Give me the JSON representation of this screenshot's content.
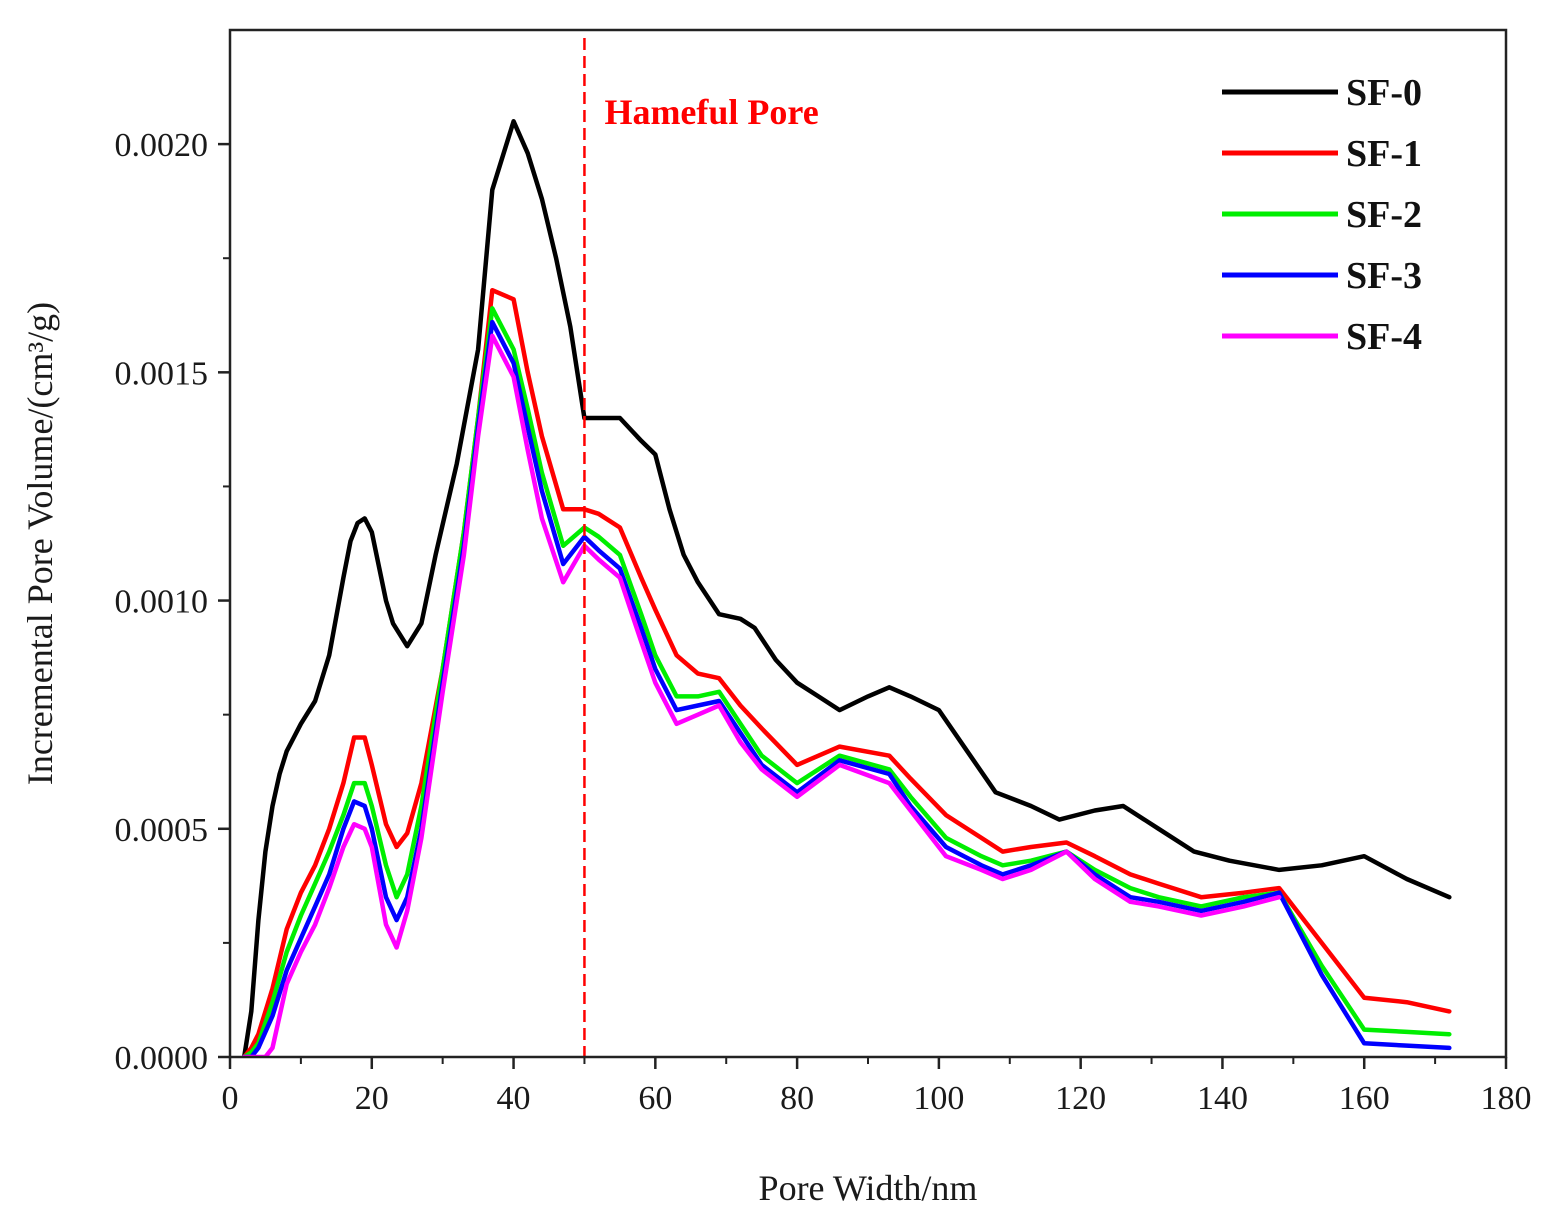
{
  "chart_data": {
    "type": "line",
    "title": "",
    "xlabel": "Pore Width/nm",
    "ylabel": "Incremental Pore Volume/(cm³/g)",
    "xlim": [
      0,
      180
    ],
    "ylim": [
      0,
      0.00225
    ],
    "xticks": [
      0,
      20,
      40,
      60,
      80,
      100,
      120,
      140,
      160,
      180
    ],
    "xtick_labels": [
      "0",
      "20",
      "40",
      "60",
      "80",
      "100",
      "120",
      "140",
      "160",
      "180"
    ],
    "yticks": [
      0,
      0.0005,
      0.001,
      0.0015,
      0.002
    ],
    "ytick_labels": [
      "0.0000",
      "0.0005",
      "0.0010",
      "0.0015",
      "0.0020"
    ],
    "grid": false,
    "legend_position": "top-right",
    "annotation": {
      "text": "Hameful Pore",
      "x": 50,
      "color": "#ff0000"
    },
    "series": [
      {
        "name": "SF-0",
        "color": "#000000",
        "x": [
          2,
          3,
          4,
          5,
          6,
          7,
          8,
          9,
          10,
          12,
          14,
          16,
          17,
          18,
          19,
          20,
          22,
          23,
          25,
          27,
          29,
          32,
          35,
          37,
          38,
          40,
          42,
          44,
          46,
          48,
          50,
          52,
          55,
          58,
          60,
          62,
          64,
          66,
          69,
          72,
          74,
          77,
          80,
          83,
          86,
          90,
          93,
          96,
          100,
          104,
          108,
          113,
          117,
          122,
          126,
          131,
          136,
          141,
          148,
          154,
          160,
          166,
          172
        ],
        "values": [
          0,
          0.0001,
          0.0003,
          0.00045,
          0.00055,
          0.00062,
          0.00067,
          0.0007,
          0.00073,
          0.00078,
          0.00088,
          0.00105,
          0.00113,
          0.00117,
          0.00118,
          0.00115,
          0.001,
          0.00095,
          0.0009,
          0.00095,
          0.0011,
          0.0013,
          0.00155,
          0.0019,
          0.00195,
          0.00205,
          0.00198,
          0.00188,
          0.00175,
          0.0016,
          0.0014,
          0.0014,
          0.0014,
          0.00135,
          0.00132,
          0.0012,
          0.0011,
          0.00104,
          0.00097,
          0.00096,
          0.00094,
          0.00087,
          0.00082,
          0.00079,
          0.00076,
          0.00079,
          0.00081,
          0.00079,
          0.00076,
          0.00067,
          0.00058,
          0.00055,
          0.00052,
          0.00054,
          0.00055,
          0.0005,
          0.00045,
          0.00043,
          0.00041,
          0.00042,
          0.00044,
          0.00039,
          0.00035
        ]
      },
      {
        "name": "SF-1",
        "color": "#ff0000",
        "x": [
          2,
          3,
          4,
          6,
          8,
          10,
          12,
          14,
          16,
          17.5,
          19,
          20,
          22,
          23.5,
          25,
          27,
          30,
          33,
          35,
          37,
          40,
          42,
          44,
          47,
          50,
          52,
          55,
          58,
          60,
          63,
          66,
          69,
          72,
          75,
          80,
          86,
          93,
          96,
          101,
          106,
          109,
          113,
          118,
          122,
          127,
          131,
          137,
          143,
          148,
          154,
          160,
          166,
          172
        ],
        "values": [
          0,
          2e-05,
          5e-05,
          0.00015,
          0.00028,
          0.00036,
          0.00042,
          0.0005,
          0.0006,
          0.0007,
          0.0007,
          0.00064,
          0.00051,
          0.00046,
          0.00049,
          0.0006,
          0.00085,
          0.00115,
          0.0014,
          0.00168,
          0.00166,
          0.0015,
          0.00136,
          0.0012,
          0.0012,
          0.00119,
          0.00116,
          0.00105,
          0.00098,
          0.00088,
          0.00084,
          0.00083,
          0.00077,
          0.00072,
          0.00064,
          0.00068,
          0.00066,
          0.00061,
          0.00053,
          0.00048,
          0.00045,
          0.00046,
          0.00047,
          0.00044,
          0.0004,
          0.00038,
          0.00035,
          0.00036,
          0.00037,
          0.00025,
          0.00013,
          0.00012,
          0.0001
        ]
      },
      {
        "name": "SF-2",
        "color": "#00ee00",
        "x": [
          2,
          3,
          4,
          6,
          8,
          10,
          12,
          14,
          16,
          17.5,
          19,
          20,
          22,
          23.5,
          25,
          27,
          30,
          33,
          35,
          37,
          40,
          42,
          44,
          47,
          50,
          52,
          55,
          58,
          60,
          63,
          66,
          69,
          72,
          75,
          80,
          86,
          93,
          96,
          101,
          106,
          109,
          113,
          118,
          122,
          127,
          131,
          137,
          143,
          148,
          154,
          160,
          166,
          172
        ],
        "values": [
          0,
          1e-05,
          3e-05,
          0.00012,
          0.00023,
          0.00031,
          0.00038,
          0.00045,
          0.00053,
          0.0006,
          0.0006,
          0.00055,
          0.00042,
          0.00035,
          0.0004,
          0.00055,
          0.00085,
          0.00115,
          0.0014,
          0.00164,
          0.00155,
          0.00142,
          0.00128,
          0.00112,
          0.00116,
          0.00114,
          0.0011,
          0.00097,
          0.00088,
          0.00079,
          0.00079,
          0.0008,
          0.00073,
          0.00066,
          0.0006,
          0.00066,
          0.00063,
          0.00057,
          0.00048,
          0.00044,
          0.00042,
          0.00043,
          0.00045,
          0.00041,
          0.00037,
          0.00035,
          0.00033,
          0.00035,
          0.00036,
          0.0002,
          6e-05,
          5.5e-05,
          5e-05
        ]
      },
      {
        "name": "SF-3",
        "color": "#0000ff",
        "x": [
          2,
          3,
          4,
          6,
          8,
          10,
          12,
          14,
          16,
          17.5,
          19,
          20,
          22,
          23.5,
          25,
          27,
          30,
          33,
          35,
          37,
          40,
          42,
          44,
          47,
          50,
          52,
          55,
          58,
          60,
          63,
          66,
          69,
          72,
          75,
          80,
          86,
          93,
          96,
          101,
          106,
          109,
          113,
          118,
          122,
          127,
          131,
          137,
          143,
          148,
          154,
          160,
          166,
          172
        ],
        "values": [
          0,
          0,
          2e-05,
          9e-05,
          0.00019,
          0.00026,
          0.00033,
          0.0004,
          0.0005,
          0.00056,
          0.00055,
          0.0005,
          0.00035,
          0.0003,
          0.00035,
          0.0005,
          0.00082,
          0.00112,
          0.00138,
          0.00161,
          0.00152,
          0.00138,
          0.00124,
          0.00108,
          0.00114,
          0.00111,
          0.00107,
          0.00094,
          0.00085,
          0.00076,
          0.00077,
          0.00078,
          0.00071,
          0.00064,
          0.00058,
          0.00065,
          0.00062,
          0.00055,
          0.00046,
          0.00042,
          0.0004,
          0.00042,
          0.00045,
          0.0004,
          0.00035,
          0.00034,
          0.00032,
          0.00034,
          0.00036,
          0.00018,
          3e-05,
          2.5e-05,
          2e-05
        ]
      },
      {
        "name": "SF-4",
        "color": "#ff00ff",
        "x": [
          2,
          3,
          4,
          5,
          6,
          8,
          10,
          12,
          14,
          16,
          17.5,
          19,
          20,
          22,
          23.5,
          25,
          27,
          30,
          33,
          35,
          37,
          40,
          42,
          44,
          47,
          50,
          52,
          55,
          58,
          60,
          63,
          66,
          69,
          72,
          75,
          80,
          86,
          93,
          96,
          101,
          106,
          109,
          113,
          118,
          122,
          127,
          131,
          137,
          143,
          148
        ],
        "values": [
          0,
          0,
          0,
          0,
          2e-05,
          0.00016,
          0.00023,
          0.00029,
          0.00037,
          0.00046,
          0.00051,
          0.0005,
          0.00046,
          0.00029,
          0.00024,
          0.00032,
          0.00048,
          0.0008,
          0.0011,
          0.00136,
          0.00158,
          0.00149,
          0.00133,
          0.00118,
          0.00104,
          0.00112,
          0.00109,
          0.00105,
          0.00091,
          0.00082,
          0.00073,
          0.00075,
          0.00077,
          0.00069,
          0.00063,
          0.00057,
          0.00064,
          0.0006,
          0.00054,
          0.00044,
          0.00041,
          0.00039,
          0.00041,
          0.00045,
          0.00039,
          0.00034,
          0.00033,
          0.00031,
          0.00033,
          0.00035
        ]
      }
    ]
  }
}
